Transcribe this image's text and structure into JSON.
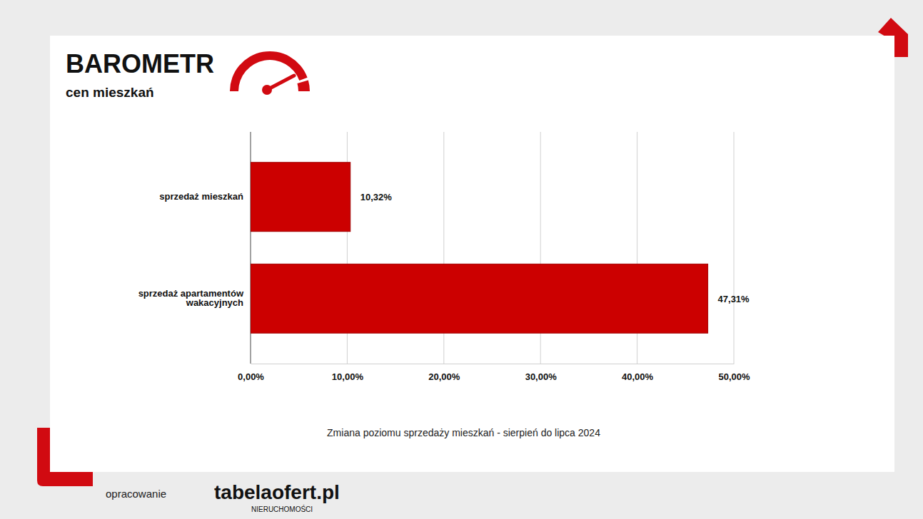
{
  "chart_data": {
    "type": "bar",
    "title": "BAROMETR",
    "subtitle": "cen mieszkań",
    "xlabel": "Zmiana poziomu sprzedaży mieszkań - sierpień do lipca 2024",
    "categories": [
      "sprzedaż mieszkań",
      "sprzedaż apartamentów wakacyjnych"
    ],
    "values": [
      10.32,
      47.31
    ],
    "value_labels": [
      "10,32%",
      "47,31%"
    ],
    "color": "#cc0000",
    "orientation": "horizontal",
    "data_labels": true,
    "grid": true,
    "xlim": [
      0,
      50
    ],
    "xticks": [
      {
        "value": 0,
        "label": "0,00%"
      },
      {
        "value": 10,
        "label": "10,00%"
      },
      {
        "value": 20,
        "label": "20,00%"
      },
      {
        "value": 30,
        "label": "30,00%"
      },
      {
        "value": 40,
        "label": "40,00%"
      },
      {
        "value": 50,
        "label": "50,00%"
      }
    ],
    "annotations": [
      "opracowanie",
      "tabelaofert.pl",
      "NIERUCHOMOŚCI"
    ]
  }
}
